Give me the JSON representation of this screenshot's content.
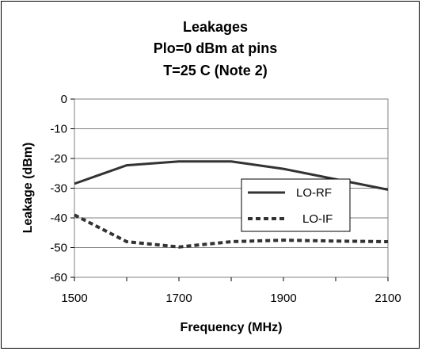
{
  "chart_data": {
    "type": "line",
    "title": [
      "Leakages",
      "Plo=0 dBm at pins",
      "T=25 C (Note 2)"
    ],
    "xlabel": "Frequency (MHz)",
    "ylabel": "Leakage (dBm)",
    "x": [
      1500,
      1600,
      1700,
      1800,
      1900,
      2000,
      2100
    ],
    "xlim": [
      1500,
      2100
    ],
    "ylim": [
      -60,
      0
    ],
    "xticks": [
      1500,
      1700,
      1900,
      2100
    ],
    "yticks": [
      0,
      -10,
      -20,
      -30,
      -40,
      -50,
      -60
    ],
    "grid": "horizontal",
    "legend_position": "right",
    "series": [
      {
        "name": "LO-RF",
        "values": [
          -28.5,
          -22.3,
          -21,
          -21,
          -23.5,
          -27,
          -30.5
        ],
        "style": "solid",
        "color": "#333333"
      },
      {
        "name": "LO-IF",
        "values": [
          -39,
          -48,
          -49.8,
          -48,
          -47.5,
          -47.8,
          -48
        ],
        "style": "dashed",
        "color": "#333333"
      }
    ]
  }
}
